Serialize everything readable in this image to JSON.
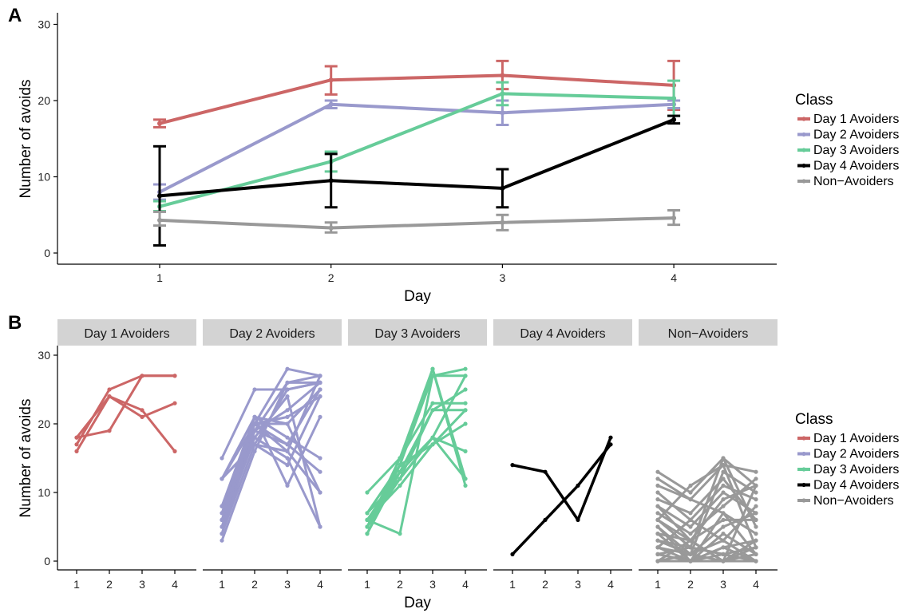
{
  "colors": {
    "Day 1 Avoiders": "#CC6666",
    "Day 2 Avoiders": "#9999CC",
    "Day 3 Avoiders": "#66CC99",
    "Day 4 Avoiders": "#000000",
    "Non-Avoiders": "#999999"
  },
  "legend": {
    "title": "Class",
    "items": [
      "Day 1 Avoiders",
      "Day 2 Avoiders",
      "Day 3 Avoiders",
      "Day 4 Avoiders",
      "Non−Avoiders"
    ]
  },
  "chart_data": [
    {
      "panel": "A",
      "type": "line",
      "xlabel": "Day",
      "ylabel": "Number of avoids",
      "x": [
        1,
        2,
        3,
        4
      ],
      "xticks": [
        "1",
        "2",
        "3",
        "4"
      ],
      "yticks": [
        0,
        10,
        20,
        30
      ],
      "ylim": [
        -1,
        31
      ],
      "error_bars": true,
      "legend_position": "right",
      "series": [
        {
          "name": "Day 1 Avoiders",
          "values": [
            17.0,
            22.7,
            23.3,
            22.0
          ],
          "lower": [
            16.5,
            20.8,
            21.5,
            18.8
          ],
          "upper": [
            17.5,
            24.5,
            25.2,
            25.2
          ]
        },
        {
          "name": "Day 2 Avoiders",
          "values": [
            8.0,
            19.5,
            18.4,
            19.5
          ],
          "lower": [
            7.0,
            19.0,
            16.8,
            19.0
          ],
          "upper": [
            9.0,
            20.0,
            20.0,
            20.0
          ]
        },
        {
          "name": "Day 3 Avoiders",
          "values": [
            6.1,
            12.0,
            20.9,
            20.3
          ],
          "lower": [
            5.5,
            10.7,
            19.4,
            18.0
          ],
          "upper": [
            6.8,
            13.3,
            22.4,
            22.6
          ]
        },
        {
          "name": "Day 4 Avoiders",
          "values": [
            7.5,
            9.5,
            8.5,
            17.5
          ],
          "lower": [
            1.0,
            6.0,
            6.0,
            17.0
          ],
          "upper": [
            14.0,
            13.0,
            11.0,
            18.0
          ]
        },
        {
          "name": "Non−Avoiders",
          "values": [
            4.3,
            3.3,
            4.0,
            4.6
          ],
          "lower": [
            3.6,
            2.7,
            3.0,
            3.7
          ],
          "upper": [
            5.4,
            4.0,
            5.0,
            5.6
          ]
        }
      ]
    },
    {
      "panel": "B",
      "type": "line",
      "xlabel": "Day",
      "ylabel": "Number of avoids",
      "x": [
        1,
        2,
        3,
        4
      ],
      "xticks": [
        "1",
        "2",
        "3",
        "4"
      ],
      "yticks": [
        0,
        10,
        20,
        30
      ],
      "ylim": [
        -1,
        31
      ],
      "legend_position": "right",
      "facets": [
        {
          "label": "Day 1 Avoiders",
          "series": "Day 1 Avoiders",
          "individuals": [
            [
              18,
              24,
              21,
              23
            ],
            [
              17,
              25,
              27,
              27
            ],
            [
              16,
              24,
              22,
              16
            ],
            [
              18,
              19,
              27,
              27
            ]
          ]
        },
        {
          "label": "Day 2 Avoiders",
          "series": "Day 2 Avoiders",
          "individuals": [
            [
              15,
              25,
              25,
              26
            ],
            [
              12,
              20,
              28,
              27
            ],
            [
              8,
              21,
              18,
              15
            ],
            [
              7,
              19,
              17,
              13
            ],
            [
              6,
              20,
              16,
              10
            ],
            [
              5,
              18,
              15,
              5
            ],
            [
              4,
              17,
              14,
              24
            ],
            [
              3,
              16,
              26,
              27
            ],
            [
              12,
              21,
              11,
              21
            ],
            [
              7,
              21,
              20,
              25
            ],
            [
              6,
              19,
              22,
              26
            ],
            [
              8,
              18,
              24,
              5
            ],
            [
              5,
              20,
              17,
              25
            ],
            [
              12,
              17,
              16,
              27
            ],
            [
              6,
              20,
              20,
              10
            ],
            [
              4,
              19,
              26,
              26
            ],
            [
              8,
              20,
              21,
              24
            ],
            [
              12,
              17,
              25,
              26
            ]
          ]
        },
        {
          "label": "Day 3 Avoiders",
          "series": "Day 3 Avoiders",
          "individuals": [
            [
              10,
              15,
              28,
              12
            ],
            [
              7,
              14,
              27,
              28
            ],
            [
              6,
              4,
              27,
              27
            ],
            [
              5,
              12,
              22,
              22
            ],
            [
              6,
              11,
              17,
              20
            ],
            [
              4,
              13,
              18,
              16
            ],
            [
              5,
              14,
              28,
              11
            ],
            [
              7,
              12,
              18,
              12
            ],
            [
              6,
              13,
              22,
              25
            ],
            [
              5,
              15,
              23,
              23
            ],
            [
              6,
              12,
              18,
              27
            ],
            [
              4,
              14,
              17,
              22
            ]
          ]
        },
        {
          "label": "Day 4 Avoiders",
          "series": "Day 4 Avoiders",
          "individuals": [
            [
              14,
              13,
              6,
              18
            ],
            [
              1,
              6,
              11,
              17
            ]
          ]
        },
        {
          "label": "Non−Avoiders",
          "series": "Non−Avoiders",
          "individuals": [
            [
              13,
              10,
              15,
              11
            ],
            [
              12,
              9,
              14,
              13
            ],
            [
              10,
              6,
              11,
              9
            ],
            [
              9,
              7,
              12,
              6
            ],
            [
              8,
              5,
              10,
              7
            ],
            [
              7,
              4,
              8,
              12
            ],
            [
              6,
              3,
              9,
              11
            ],
            [
              6,
              2,
              15,
              5
            ],
            [
              5,
              1,
              13,
              10
            ],
            [
              5,
              0,
              7,
              1
            ],
            [
              4,
              3,
              6,
              6
            ],
            [
              4,
              0,
              2,
              3
            ],
            [
              3,
              1,
              5,
              7
            ],
            [
              3,
              2,
              1,
              0
            ],
            [
              2,
              0,
              4,
              1
            ],
            [
              2,
              1,
              3,
              8
            ],
            [
              1,
              0,
              0,
              2
            ],
            [
              1,
              2,
              1,
              0
            ],
            [
              0,
              1,
              0,
              3
            ],
            [
              0,
              0,
              2,
              0
            ],
            [
              0,
              3,
              0,
              1
            ],
            [
              0,
              0,
              1,
              2
            ],
            [
              1,
              0,
              0,
              0
            ],
            [
              2,
              6,
              3,
              0
            ],
            [
              8,
              3,
              0,
              11
            ],
            [
              11,
              9,
              7,
              4
            ],
            [
              6,
              11,
              14,
              2
            ]
          ]
        }
      ]
    }
  ],
  "panel_labels": [
    "A",
    "B"
  ]
}
